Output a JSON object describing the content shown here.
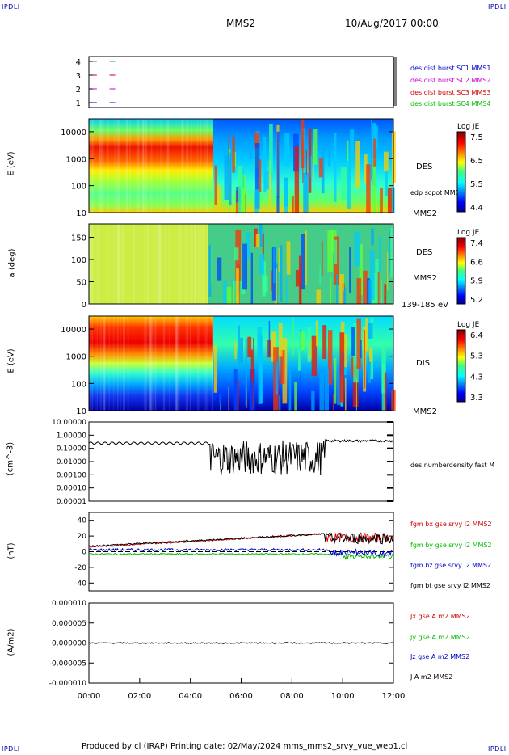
{
  "corners": {
    "tl": "IPDLI",
    "tr": "IPDLI",
    "bl": "IPDLI",
    "br": "IPDLI"
  },
  "header": {
    "spacecraft": "MMS2",
    "date": "10/Aug/2017 00:00"
  },
  "footer": {
    "text": "Produced by cl (IRAP)   Printing date: 02/May/2024   mms_mms2_srvy_vue_web1.cl"
  },
  "colors": {
    "blue": "#0000cc",
    "magenta": "#cc00cc",
    "red": "#cc0000",
    "green": "#00bb00",
    "black": "#000000"
  },
  "chart_data": [
    {
      "type": "scatter",
      "id": "burst",
      "yticks": [
        "1",
        "2",
        "3",
        "4"
      ],
      "legend": [
        {
          "label": "des dist burst SC1 MMS1",
          "color": "#0000cc"
        },
        {
          "label": "des dist burst SC2 MMS2",
          "color": "#cc00cc"
        },
        {
          "label": "des dist burst SC3 MMS3",
          "color": "#cc0000"
        },
        {
          "label": "des dist burst SC4 MMS4",
          "color": "#00bb00"
        }
      ],
      "segments": [
        {
          "level": 4,
          "x": [
            0.25,
            0.75
          ],
          "color": "#00bb00"
        },
        {
          "level": 3,
          "x": [
            0.25,
            0.75
          ],
          "color": "#cc0000"
        },
        {
          "level": 2,
          "x": [
            0.25,
            0.75
          ],
          "color": "#cc00cc"
        },
        {
          "level": 1,
          "x": [
            0.25,
            0.75
          ],
          "color": "#0000cc"
        }
      ]
    },
    {
      "type": "heatmap",
      "id": "des_energy",
      "ylabel": "E (eV)",
      "yscale": "log",
      "ylim": [
        10,
        30000
      ],
      "yticks": [
        "10",
        "100",
        "1000",
        "10000"
      ],
      "right_labels": [
        "DES",
        "edp scpot MMS2",
        "MMS2"
      ],
      "colorbar": {
        "title": "Log JE",
        "ticks": [
          "7.5",
          "6.5",
          "5.5",
          "4.4"
        ],
        "range": [
          4.4,
          7.5
        ]
      }
    },
    {
      "type": "heatmap",
      "id": "des_pitch",
      "ylabel": "a (deg)",
      "ylim": [
        0,
        180
      ],
      "yticks": [
        "0",
        "50",
        "100",
        "150"
      ],
      "right_labels": [
        "DES",
        "MMS2",
        "139-185 eV"
      ],
      "colorbar": {
        "title": "Log JE",
        "ticks": [
          "7.4",
          "6.6",
          "5.9",
          "5.2"
        ],
        "range": [
          5.2,
          7.4
        ]
      }
    },
    {
      "type": "heatmap",
      "id": "dis_energy",
      "ylabel": "E (eV)",
      "yscale": "log",
      "ylim": [
        10,
        30000
      ],
      "yticks": [
        "10",
        "100",
        "1000",
        "10000"
      ],
      "right_labels": [
        "DIS",
        "MMS2"
      ],
      "colorbar": {
        "title": "Log JE",
        "ticks": [
          "6.4",
          "5.3",
          "4.3",
          "3.3"
        ],
        "range": [
          3.3,
          6.4
        ]
      }
    },
    {
      "type": "line",
      "id": "density",
      "ylabel": "(cm^-3)",
      "yscale": "log",
      "ylim": [
        1e-05,
        10
      ],
      "yticks": [
        "10.00000",
        "1.00000",
        "0.10000",
        "0.01000",
        "0.00100",
        "0.00010",
        "0.00001"
      ],
      "series": [
        {
          "name": "des numberdensity fast M",
          "color": "#000000"
        }
      ]
    },
    {
      "type": "line",
      "id": "bfield",
      "ylabel": "(nT)",
      "ylim": [
        -50,
        50
      ],
      "yticks": [
        "40",
        "20",
        "0",
        "-20",
        "-40"
      ],
      "series": [
        {
          "name": "fgm bx gse srvy l2 MMS2",
          "color": "#cc0000"
        },
        {
          "name": "fgm by gse srvy l2 MMS2",
          "color": "#00bb00"
        },
        {
          "name": "fgm bz gse srvy l2 MMS2",
          "color": "#0000cc"
        },
        {
          "name": "fgm bt gse srvy l2 MMS2",
          "color": "#000000"
        }
      ]
    },
    {
      "type": "line",
      "id": "current",
      "ylabel": "(A/m2)",
      "ylim": [
        -1e-05,
        1e-05
      ],
      "yticks": [
        "0.000010",
        "0.000005",
        "0.000000",
        "-0.000005",
        "-0.000010"
      ],
      "series": [
        {
          "name": "Jx gse A m2 MMS2",
          "color": "#cc0000"
        },
        {
          "name": "Jy gse A m2 MMS2",
          "color": "#00bb00"
        },
        {
          "name": "Jz gse A m2 MMS2",
          "color": "#0000cc"
        },
        {
          "name": "J A m2 MMS2",
          "color": "#000000"
        }
      ]
    }
  ],
  "xaxis": {
    "ticks": [
      "00:00",
      "02:00",
      "04:00",
      "06:00",
      "08:00",
      "10:00",
      "12:00"
    ]
  }
}
